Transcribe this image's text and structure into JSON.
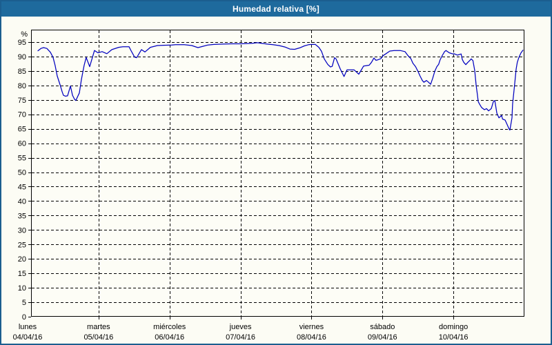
{
  "title": "Humedad relativa [%]",
  "colors": {
    "frame_border": "#1b5e8f",
    "title_bg": "#1e6a9d",
    "title_text": "#ffffff",
    "background": "#fcfcf4",
    "grid": "#000000",
    "line": "#0000bf"
  },
  "chart_data": {
    "type": "line",
    "title": "Humedad relativa [%]",
    "ylabel": "%",
    "unit_label": "%",
    "ylim": [
      0,
      99.3
    ],
    "y_ticks": [
      95,
      90,
      85,
      80,
      75,
      70,
      65,
      60,
      55,
      50,
      45,
      40,
      35,
      30,
      25,
      20,
      15,
      10,
      5,
      0
    ],
    "grid": "dashed",
    "legend": "none",
    "x_hours_total": 168,
    "x_days": [
      {
        "name": "lunes",
        "date": "04/04/16"
      },
      {
        "name": "martes",
        "date": "05/04/16"
      },
      {
        "name": "miércoles",
        "date": "06/04/16"
      },
      {
        "name": "jueves",
        "date": "07/04/16"
      },
      {
        "name": "viernes",
        "date": "08/04/16"
      },
      {
        "name": "sábado",
        "date": "09/04/16"
      },
      {
        "name": "domingo",
        "date": "10/04/16"
      }
    ],
    "series": [
      {
        "name": "Humedad relativa",
        "color": "#0000bf",
        "points": [
          [
            3.5,
            92.0
          ],
          [
            4.5,
            92.8
          ],
          [
            5.4,
            93.1
          ],
          [
            6.5,
            92.8
          ],
          [
            7.7,
            91.5
          ],
          [
            8.6,
            89.7
          ],
          [
            9.3,
            86.9
          ],
          [
            10,
            83.3
          ],
          [
            11,
            80.2
          ],
          [
            11.7,
            77.8
          ],
          [
            12.1,
            76.6
          ],
          [
            12.8,
            76.3
          ],
          [
            13.5,
            76.4
          ],
          [
            14.5,
            79.8
          ],
          [
            15.2,
            76.6
          ],
          [
            15.9,
            75.2
          ],
          [
            16.3,
            74.8
          ],
          [
            17.5,
            77.4
          ],
          [
            18.2,
            82.1
          ],
          [
            19.1,
            86.9
          ],
          [
            19.8,
            89.7
          ],
          [
            21,
            86.5
          ],
          [
            22.6,
            92.1
          ],
          [
            23.8,
            91.3
          ],
          [
            25.2,
            91.7
          ],
          [
            26.8,
            91.0
          ],
          [
            28.5,
            92.4
          ],
          [
            30.8,
            93.2
          ],
          [
            32.2,
            93.4
          ],
          [
            34.3,
            93.4
          ],
          [
            35,
            92.0
          ],
          [
            36.2,
            89.8
          ],
          [
            36.9,
            89.6
          ],
          [
            37.8,
            91.2
          ],
          [
            38.5,
            92.4
          ],
          [
            39.7,
            91.6
          ],
          [
            41.5,
            93.2
          ],
          [
            43.9,
            93.8
          ],
          [
            46,
            93.9
          ],
          [
            48.8,
            94.0
          ],
          [
            50,
            94.1
          ],
          [
            53,
            94.1
          ],
          [
            55.5,
            93.8
          ],
          [
            57.6,
            93.1
          ],
          [
            59.5,
            93.6
          ],
          [
            61,
            94.0
          ],
          [
            63,
            94.2
          ],
          [
            66,
            94.3
          ],
          [
            69,
            94.4
          ],
          [
            71,
            94.4
          ],
          [
            72,
            94.4
          ],
          [
            74,
            94.5
          ],
          [
            76,
            94.6
          ],
          [
            77.7,
            94.8
          ],
          [
            79,
            94.6
          ],
          [
            81,
            94.3
          ],
          [
            83,
            94.1
          ],
          [
            85,
            93.8
          ],
          [
            87,
            93.3
          ],
          [
            88.7,
            92.6
          ],
          [
            90.3,
            92.5
          ],
          [
            92,
            93.0
          ],
          [
            93.6,
            93.7
          ],
          [
            95,
            94.1
          ],
          [
            96,
            94.2
          ],
          [
            97.3,
            94.2
          ],
          [
            98.5,
            93.2
          ],
          [
            99.4,
            91.8
          ],
          [
            100.3,
            89.2
          ],
          [
            101.5,
            87.3
          ],
          [
            102.4,
            86.4
          ],
          [
            103,
            86.6
          ],
          [
            103.8,
            89.6
          ],
          [
            104.3,
            89.2
          ],
          [
            105.7,
            85.8
          ],
          [
            106.6,
            83.9
          ],
          [
            107,
            83.1
          ],
          [
            108,
            85.4
          ],
          [
            110.4,
            85.4
          ],
          [
            112,
            83.9
          ],
          [
            113.6,
            86.7
          ],
          [
            115.5,
            87.0
          ],
          [
            116.3,
            88.0
          ],
          [
            117.1,
            89.5
          ],
          [
            117.8,
            88.7
          ],
          [
            118.5,
            88.9
          ],
          [
            119.5,
            89.3
          ],
          [
            120.2,
            90.3
          ],
          [
            121.2,
            91.0
          ],
          [
            122.5,
            91.9
          ],
          [
            124,
            92.1
          ],
          [
            126,
            92.1
          ],
          [
            127.6,
            91.7
          ],
          [
            128.5,
            90.5
          ],
          [
            129.6,
            89.3
          ],
          [
            130.3,
            87.7
          ],
          [
            131.2,
            86.5
          ],
          [
            132,
            84.9
          ],
          [
            132.7,
            83.3
          ],
          [
            133.5,
            81.7
          ],
          [
            134,
            81.1
          ],
          [
            134.9,
            81.7
          ],
          [
            135.6,
            81.1
          ],
          [
            136.3,
            80.4
          ],
          [
            137,
            82.5
          ],
          [
            137.7,
            84.9
          ],
          [
            138.4,
            86.5
          ],
          [
            139,
            87.3
          ],
          [
            139.5,
            88.9
          ],
          [
            140.3,
            90.5
          ],
          [
            141,
            91.7
          ],
          [
            141.5,
            92.1
          ],
          [
            142.6,
            91.3
          ],
          [
            143.8,
            90.9
          ],
          [
            144.2,
            91.0
          ],
          [
            145.4,
            90.5
          ],
          [
            146.6,
            90.9
          ],
          [
            147.0,
            89.0
          ],
          [
            147.5,
            88.0
          ],
          [
            148.2,
            87.2
          ],
          [
            148.9,
            88.0
          ],
          [
            149.5,
            88.6
          ],
          [
            150.0,
            89.2
          ],
          [
            150.6,
            88.6
          ],
          [
            151.2,
            85.2
          ],
          [
            151.7,
            80.0
          ],
          [
            152.1,
            76.8
          ],
          [
            152.4,
            74.4
          ],
          [
            152.8,
            73.6
          ],
          [
            153.5,
            72.4
          ],
          [
            154.5,
            71.6
          ],
          [
            155.2,
            72.0
          ],
          [
            155.9,
            71.2
          ],
          [
            156.8,
            72.0
          ],
          [
            157.5,
            74.4
          ],
          [
            158.0,
            74.8
          ],
          [
            158.7,
            70.4
          ],
          [
            159.4,
            68.8
          ],
          [
            160.3,
            69.6
          ],
          [
            160.6,
            68.4
          ],
          [
            161.5,
            68.0
          ],
          [
            162.2,
            66.4
          ],
          [
            162.9,
            64.8
          ],
          [
            163.1,
            64.6
          ],
          [
            163.8,
            68.8
          ],
          [
            164.0,
            73.6
          ],
          [
            164.5,
            78.4
          ],
          [
            164.9,
            82.4
          ],
          [
            165.2,
            85.6
          ],
          [
            165.6,
            88.0
          ],
          [
            166.1,
            89.6
          ],
          [
            166.8,
            91.2
          ],
          [
            167.5,
            92.2
          ]
        ]
      }
    ]
  }
}
